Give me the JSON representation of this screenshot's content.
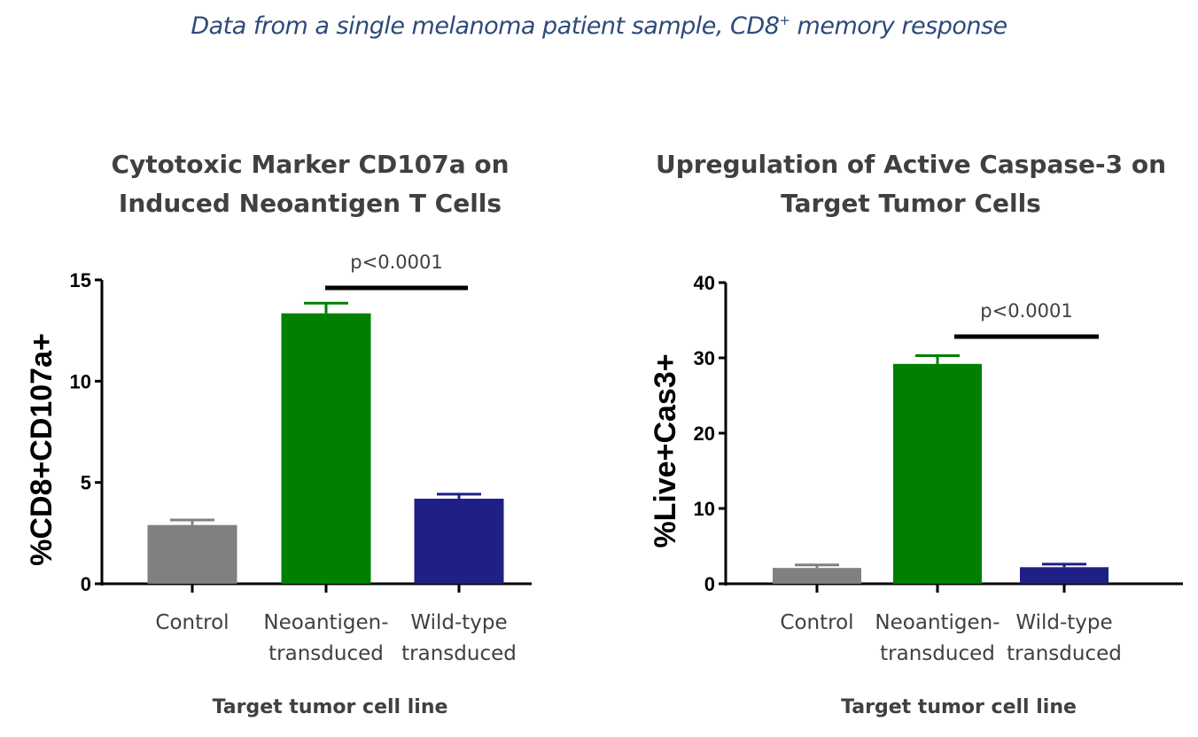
{
  "header": {
    "subtitle": "Data from a single melanoma patient sample, CD8",
    "subtitle_sup": "+",
    "subtitle_tail": " memory response"
  },
  "chart_data": [
    {
      "type": "bar",
      "title": [
        "Cytotoxic Marker CD107a on",
        "Induced Neoantigen T Cells"
      ],
      "xlabel": "Target tumor cell line",
      "ylabel": "%CD8+CD107a+",
      "categories": [
        [
          "Control"
        ],
        [
          "Neoantigen-",
          "transduced"
        ],
        [
          "Wild-type",
          "transduced"
        ]
      ],
      "values": [
        2.9,
        13.35,
        4.2
      ],
      "error_upper": [
        3.15,
        13.85,
        4.42
      ],
      "colors": [
        "#808080",
        "#008000",
        "#1f1f85"
      ],
      "ylim": [
        0,
        15
      ],
      "yticks": [
        0,
        5,
        10,
        15
      ],
      "annotation": {
        "text": "p<0.0001",
        "between": [
          1,
          2
        ]
      }
    },
    {
      "type": "bar",
      "title": [
        "Upregulation of Active Caspase-3 on",
        "Target Tumor Cells"
      ],
      "xlabel": "Target tumor cell line",
      "ylabel": "%Live+Cas3+",
      "categories": [
        [
          "Control"
        ],
        [
          "Neoantigen-",
          "transduced"
        ],
        [
          "Wild-type",
          "transduced"
        ]
      ],
      "values": [
        2.1,
        29.2,
        2.2
      ],
      "error_upper": [
        2.5,
        30.3,
        2.6
      ],
      "colors": [
        "#808080",
        "#008000",
        "#1f1f85"
      ],
      "ylim": [
        0,
        40
      ],
      "yticks": [
        0,
        10,
        20,
        30,
        40
      ],
      "annotation": {
        "text": "p<0.0001",
        "between": [
          1,
          2
        ]
      }
    }
  ]
}
